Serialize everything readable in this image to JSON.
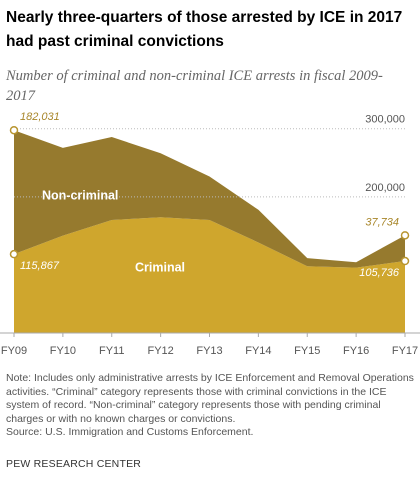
{
  "chart_data": {
    "type": "stacked_area",
    "title": "Nearly three-quarters of those arrested by ICE in 2017 had past criminal convictions",
    "subtitle": "Number of criminal and non-criminal ICE arrests in fiscal 2009-2017",
    "categories": [
      "FY09",
      "FY10",
      "FY11",
      "FY12",
      "FY13",
      "FY14",
      "FY15",
      "FY16",
      "FY17"
    ],
    "series": [
      {
        "name": "Criminal",
        "color": "#cfa62d",
        "values": [
          115867,
          143000,
          166000,
          170000,
          166000,
          133000,
          98000,
          96000,
          105736
        ],
        "value_labels": [
          "115,867",
          null,
          null,
          null,
          null,
          null,
          null,
          null,
          "105,736"
        ]
      },
      {
        "name": "Non-criminal",
        "color": "#967a2e",
        "values": [
          182031,
          129000,
          122000,
          94000,
          64000,
          48000,
          12000,
          8000,
          37734
        ],
        "value_labels": [
          "182,031",
          null,
          null,
          null,
          null,
          null,
          null,
          null,
          "37,734"
        ]
      }
    ],
    "ylim": [
      0,
      310000
    ],
    "yticks": [
      {
        "value": 200000,
        "label": "200,000"
      },
      {
        "value": 300000,
        "label": "300,000"
      }
    ],
    "grid": true,
    "note": "Note: Includes only administrative arrests by ICE Enforcement and Removal Operations activities. “Criminal” category represents those with criminal convictions in the ICE system of record. “Non-criminal” category represents those with pending criminal charges or with no known charges or convictions.",
    "source": "Source: U.S. Immigration and Customs Enforcement.",
    "brand": "PEW RESEARCH CENTER"
  }
}
